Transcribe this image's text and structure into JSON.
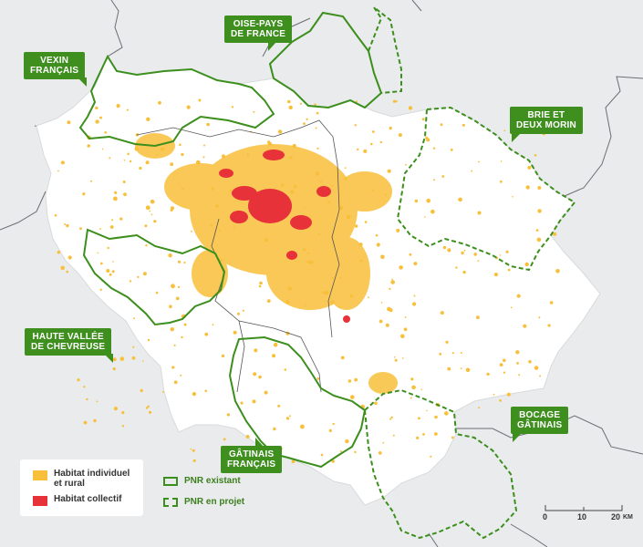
{
  "colors": {
    "background": "#e9ebed",
    "region_fill": "#ffffff",
    "habitat_individuel": "#f8bf3a",
    "habitat_collectif": "#e8323a",
    "pnr_green": "#3c8f1c",
    "boundary_gray": "#555555"
  },
  "parks": {
    "vexin": "VEXIN\nFRANÇAIS",
    "oise": "OISE-PAYS\nDE FRANCE",
    "brie": "BRIE ET\nDEUX MORIN",
    "chevreuse": "HAUTE VALLÉE\nDE CHEVREUSE",
    "bocage": "BOCAGE\nGÂTINAIS",
    "gatinais": "GÂTINAIS\nFRANÇAIS"
  },
  "legend": {
    "habitat_individuel": "Habitat individuel\net rural",
    "habitat_collectif": "Habitat collectif",
    "pnr_existant": "PNR existant",
    "pnr_projet": "PNR en projet"
  },
  "scale": {
    "tick_0": "0",
    "tick_10": "10",
    "tick_20": "20",
    "unit": "KM"
  }
}
